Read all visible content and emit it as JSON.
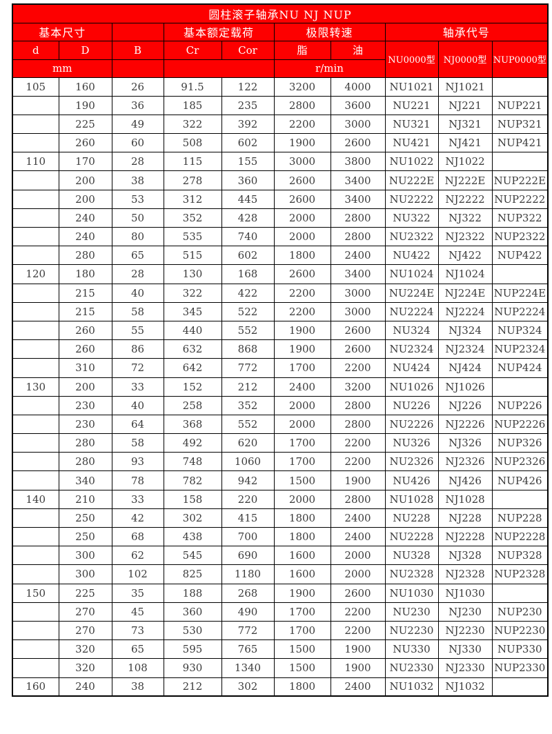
{
  "page": {
    "title": "圆柱滚子轴承NU NJ NUP"
  },
  "colors": {
    "header_bg": "#fd0000",
    "header_text": "#ffffff",
    "border": "#000000",
    "body_text": "#3c3c3c",
    "page_bg": "#ffffff"
  },
  "table": {
    "groups": {
      "dimensions": "基本尺寸",
      "load": "基本额定载荷",
      "speed": "极限转速",
      "code": "轴承代号"
    },
    "columns": {
      "d": "d",
      "D": "D",
      "B": "B",
      "Cr": "Cr",
      "Cor": "Cor",
      "grease": "脂",
      "oil": "油",
      "nu": "NU0000型",
      "nj": "NJ0000型",
      "nup": "NUP0000型"
    },
    "units": {
      "mm": "mm",
      "rpm": "r/min"
    },
    "rows": [
      [
        "105",
        "160",
        "26",
        "91.5",
        "122",
        "3200",
        "4000",
        "NU1021",
        "NJ1021",
        ""
      ],
      [
        "",
        "190",
        "36",
        "185",
        "235",
        "2800",
        "3600",
        "NU221",
        "NJ221",
        "NUP221"
      ],
      [
        "",
        "225",
        "49",
        "322",
        "392",
        "2200",
        "3000",
        "NU321",
        "NJ321",
        "NUP321"
      ],
      [
        "",
        "260",
        "60",
        "508",
        "602",
        "1900",
        "2600",
        "NU421",
        "NJ421",
        "NUP421"
      ],
      [
        "110",
        "170",
        "28",
        "115",
        "155",
        "3000",
        "3800",
        "NU1022",
        "NJ1022",
        ""
      ],
      [
        "",
        "200",
        "38",
        "278",
        "360",
        "2600",
        "3400",
        "NU222E",
        "NJ222E",
        "NUP222E"
      ],
      [
        "",
        "200",
        "53",
        "312",
        "445",
        "2600",
        "3400",
        "NU2222",
        "NJ2222",
        "NUP2222"
      ],
      [
        "",
        "240",
        "50",
        "352",
        "428",
        "2000",
        "2800",
        "NU322",
        "NJ322",
        "NUP322"
      ],
      [
        "",
        "240",
        "80",
        "535",
        "740",
        "2000",
        "2800",
        "NU2322",
        "NJ2322",
        "NUP2322"
      ],
      [
        "",
        "280",
        "65",
        "515",
        "602",
        "1800",
        "2400",
        "NU422",
        "NJ422",
        "NUP422"
      ],
      [
        "120",
        "180",
        "28",
        "130",
        "168",
        "2600",
        "3400",
        "NU1024",
        "NJ1024",
        ""
      ],
      [
        "",
        "215",
        "40",
        "322",
        "422",
        "2200",
        "3000",
        "NU224E",
        "NJ224E",
        "NUP224E"
      ],
      [
        "",
        "215",
        "58",
        "345",
        "522",
        "2200",
        "3000",
        "NU2224",
        "NJ2224",
        "NUP2224"
      ],
      [
        "",
        "260",
        "55",
        "440",
        "552",
        "1900",
        "2600",
        "NU324",
        "NJ324",
        "NUP324"
      ],
      [
        "",
        "260",
        "86",
        "632",
        "868",
        "1900",
        "2600",
        "NU2324",
        "NJ2324",
        "NUP2324"
      ],
      [
        "",
        "310",
        "72",
        "642",
        "772",
        "1700",
        "2200",
        "NU424",
        "NJ424",
        "NUP424"
      ],
      [
        "130",
        "200",
        "33",
        "152",
        "212",
        "2400",
        "3200",
        "NU1026",
        "NJ1026",
        ""
      ],
      [
        "",
        "230",
        "40",
        "258",
        "352",
        "2000",
        "2800",
        "NU226",
        "NJ226",
        "NUP226"
      ],
      [
        "",
        "230",
        "64",
        "368",
        "552",
        "2000",
        "2800",
        "NU2226",
        "NJ2226",
        "NUP2226"
      ],
      [
        "",
        "280",
        "58",
        "492",
        "620",
        "1700",
        "2200",
        "NU326",
        "NJ326",
        "NUP326"
      ],
      [
        "",
        "280",
        "93",
        "748",
        "1060",
        "1700",
        "2200",
        "NU2326",
        "NJ2326",
        "NUP2326"
      ],
      [
        "",
        "340",
        "78",
        "782",
        "942",
        "1500",
        "1900",
        "NU426",
        "NJ426",
        "NUP426"
      ],
      [
        "140",
        "210",
        "33",
        "158",
        "220",
        "2000",
        "2800",
        "NU1028",
        "NJ1028",
        ""
      ],
      [
        "",
        "250",
        "42",
        "302",
        "415",
        "1800",
        "2400",
        "NU228",
        "NJ228",
        "NUP228"
      ],
      [
        "",
        "250",
        "68",
        "438",
        "700",
        "1800",
        "2400",
        "NU2228",
        "NJ2228",
        "NUP2228"
      ],
      [
        "",
        "300",
        "62",
        "545",
        "690",
        "1600",
        "2000",
        "NU328",
        "NJ328",
        "NUP328"
      ],
      [
        "",
        "300",
        "102",
        "825",
        "1180",
        "1600",
        "2000",
        "NU2328",
        "NJ2328",
        "NUP2328"
      ],
      [
        "150",
        "225",
        "35",
        "188",
        "268",
        "1900",
        "2600",
        "NU1030",
        "NJ1030",
        ""
      ],
      [
        "",
        "270",
        "45",
        "360",
        "490",
        "1700",
        "2200",
        "NU230",
        "NJ230",
        "NUP230"
      ],
      [
        "",
        "270",
        "73",
        "530",
        "772",
        "1700",
        "2200",
        "NU2230",
        "NJ2230",
        "NUP2230"
      ],
      [
        "",
        "320",
        "65",
        "595",
        "765",
        "1500",
        "1900",
        "NU330",
        "NJ330",
        "NUP330"
      ],
      [
        "",
        "320",
        "108",
        "930",
        "1340",
        "1500",
        "1900",
        "NU2330",
        "NJ2330",
        "NUP2330"
      ],
      [
        "160",
        "240",
        "38",
        "212",
        "302",
        "1800",
        "2400",
        "NU1032",
        "NJ1032",
        ""
      ]
    ]
  }
}
